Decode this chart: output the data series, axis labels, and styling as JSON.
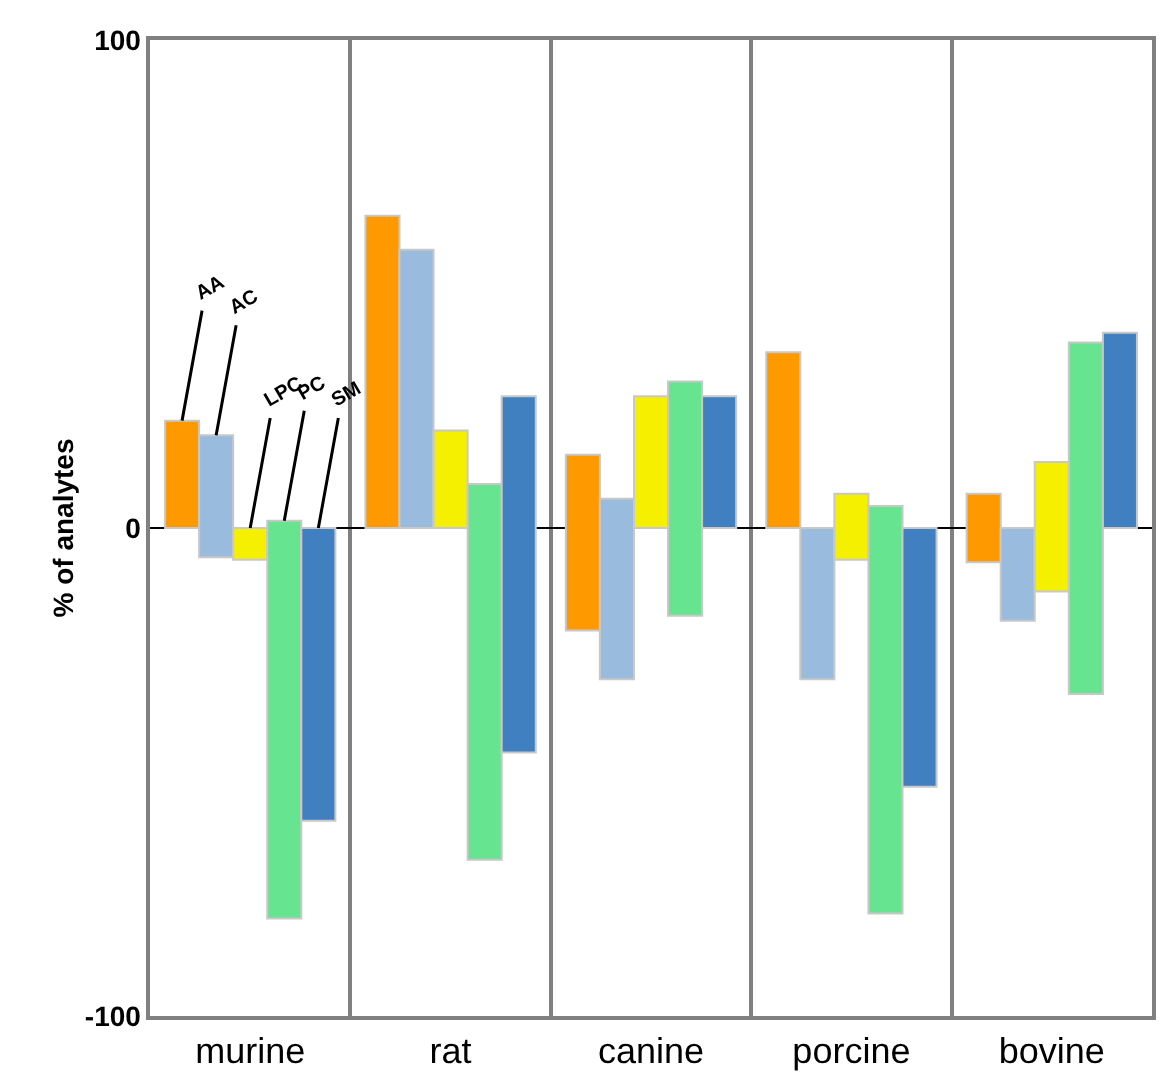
{
  "chart_data": {
    "type": "bar",
    "ylabel": "% of analytes",
    "categories": [
      "murine",
      "rat",
      "canine",
      "porcine",
      "bovine"
    ],
    "series": [
      {
        "name": "AA",
        "color": "#ff9900",
        "values": [
          22,
          64,
          36,
          36,
          14
        ],
        "base": [
          0,
          0,
          -21,
          0,
          -7
        ]
      },
      {
        "name": "AC",
        "color": "#99bbdd",
        "values": [
          25,
          57,
          37,
          -31,
          -19
        ],
        "base": [
          -6,
          0,
          -31,
          0,
          0
        ]
      },
      {
        "name": "LPC",
        "color": "#f5ef00",
        "values": [
          -6.5,
          20,
          27,
          13.5,
          26.5
        ],
        "base": [
          0,
          0,
          0,
          -6.5,
          -13
        ]
      },
      {
        "name": "PC",
        "color": "#66e490",
        "values": [
          81.5,
          77,
          48,
          83.5,
          72
        ],
        "base": [
          -80,
          -68,
          -18,
          -79,
          -34
        ]
      },
      {
        "name": "SM",
        "color": "#4080c0",
        "values": [
          -60,
          73,
          27,
          -53,
          40
        ],
        "base": [
          0,
          -46,
          0,
          0,
          0
        ]
      }
    ],
    "ylim": [
      -100,
      100
    ],
    "yticks": [
      -100,
      0,
      100
    ],
    "grid": "x",
    "legend": false
  }
}
